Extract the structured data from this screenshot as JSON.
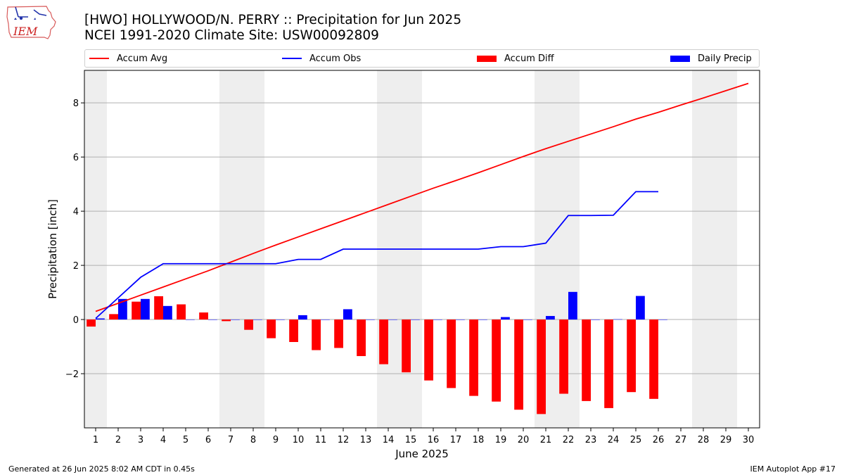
{
  "header": {
    "logo_text": "IEM",
    "title_line1": "[HWO] HOLLYWOOD/N. PERRY :: Precipitation for Jun 2025",
    "title_line2": "NCEI 1991-2020 Climate Site: USW00092809"
  },
  "footer": {
    "generated": "Generated at 26 Jun 2025 8:02 AM CDT in 0.45s",
    "app": "IEM Autoplot App #17"
  },
  "colors": {
    "accum_avg": "#ff0000",
    "accum_obs": "#0000ff",
    "accum_diff": "#ff0000",
    "daily_precip": "#0000ff",
    "weekend_shade": "#eeeeee",
    "grid": "#b0b0b0"
  },
  "chart_data": {
    "type": "bar",
    "xlabel": "June 2025",
    "ylabel": "Precipitation [inch]",
    "xlim": [
      0.5,
      30.5
    ],
    "ylim": [
      -4.0,
      9.2
    ],
    "yticks": [
      -2,
      0,
      2,
      4,
      6,
      8
    ],
    "ytick_labels": [
      "−2",
      "0",
      "2",
      "4",
      "6",
      "8"
    ],
    "days": [
      1,
      2,
      3,
      4,
      5,
      6,
      7,
      8,
      9,
      10,
      11,
      12,
      13,
      14,
      15,
      16,
      17,
      18,
      19,
      20,
      21,
      22,
      23,
      24,
      25,
      26,
      27,
      28,
      29,
      30
    ],
    "weekend_days": [
      1,
      7,
      8,
      14,
      15,
      21,
      22,
      28,
      29
    ],
    "grid": "horizontal",
    "legend_placement": "top",
    "legend": [
      "Accum Avg",
      "Accum Obs",
      "Accum Diff",
      "Daily Precip"
    ],
    "accum_avg": [
      0.3,
      0.6,
      0.9,
      1.2,
      1.5,
      1.8,
      2.12,
      2.44,
      2.75,
      3.05,
      3.35,
      3.65,
      3.95,
      4.25,
      4.55,
      4.85,
      5.13,
      5.42,
      5.72,
      6.02,
      6.31,
      6.58,
      6.85,
      7.12,
      7.4,
      7.65,
      7.92,
      8.18,
      8.45,
      8.72
    ],
    "accum_obs": [
      0.04,
      0.8,
      1.56,
      2.06,
      2.06,
      2.06,
      2.06,
      2.06,
      2.06,
      2.22,
      2.22,
      2.6,
      2.6,
      2.6,
      2.6,
      2.6,
      2.6,
      2.6,
      2.69,
      2.69,
      2.82,
      3.84,
      3.84,
      3.85,
      4.72,
      4.72
    ],
    "accum_diff": [
      -0.26,
      0.2,
      0.66,
      0.86,
      0.56,
      0.26,
      -0.06,
      -0.38,
      -0.69,
      -0.83,
      -1.13,
      -1.05,
      -1.35,
      -1.65,
      -1.95,
      -2.25,
      -2.53,
      -2.82,
      -3.03,
      -3.33,
      -3.49,
      -2.74,
      -3.01,
      -3.27,
      -2.68,
      -2.93
    ],
    "daily_precip": [
      0.04,
      0.76,
      0.76,
      0.5,
      0.0,
      0.0,
      0.0,
      0.0,
      0.0,
      0.16,
      0.0,
      0.38,
      0.0,
      0.0,
      0.0,
      0.0,
      0.0,
      0.0,
      0.09,
      0.0,
      0.13,
      1.02,
      0.0,
      0.01,
      0.87,
      0.0
    ]
  }
}
